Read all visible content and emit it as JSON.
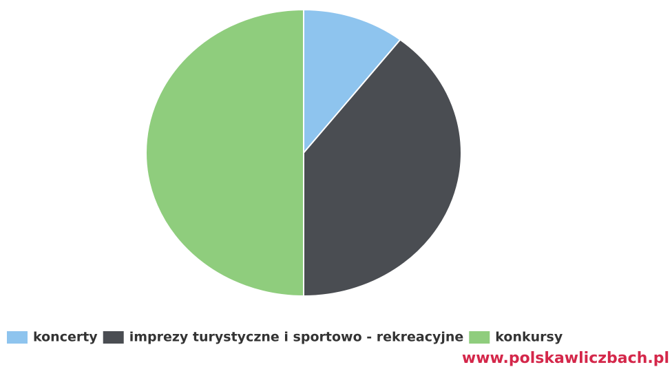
{
  "chart_data": {
    "type": "pie",
    "categories": [
      "koncerty",
      "imprezy turystyczne i sportowo - rekreacyjne",
      "konkursy"
    ],
    "values": [
      10.5,
      39.5,
      50
    ],
    "colors": [
      "#8ec4ee",
      "#4a4d52",
      "#8fcd7d"
    ],
    "legend": "bottom",
    "source": "www.polskawliczbach.pl"
  }
}
